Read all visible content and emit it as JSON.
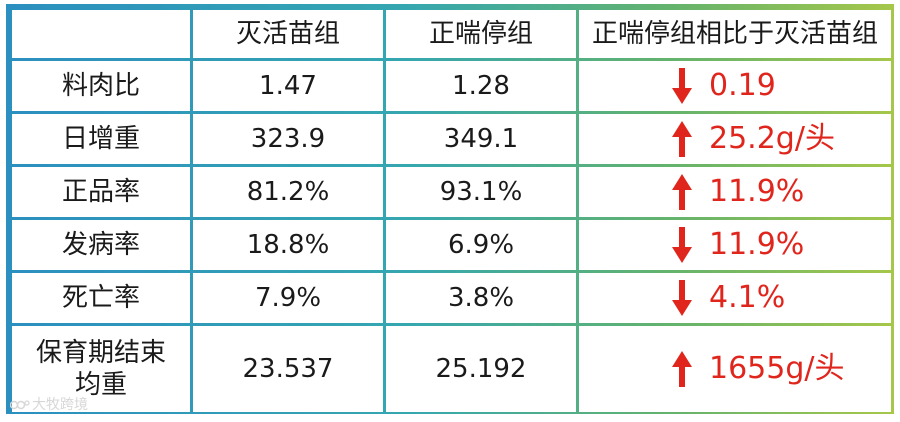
{
  "table": {
    "headers": [
      "",
      "灭活苗组",
      "正喘停组",
      "正喘停组相比于灭活苗组"
    ],
    "rows": [
      {
        "label": "料肉比",
        "inactivated": "1.47",
        "zhengchuanting": "1.28",
        "direction": "down",
        "change": "0.19"
      },
      {
        "label": "日增重",
        "inactivated": "323.9",
        "zhengchuanting": "349.1",
        "direction": "up",
        "change": "25.2g/头"
      },
      {
        "label": "正品率",
        "inactivated": "81.2%",
        "zhengchuanting": "93.1%",
        "direction": "up",
        "change": "11.9%"
      },
      {
        "label": "发病率",
        "inactivated": "18.8%",
        "zhengchuanting": "6.9%",
        "direction": "down",
        "change": "11.9%"
      },
      {
        "label": "死亡率",
        "inactivated": "7.9%",
        "zhengchuanting": "3.8%",
        "direction": "down",
        "change": "4.1%"
      },
      {
        "label_line1": "保育期结束",
        "label_line2": "均重",
        "inactivated": "23.537",
        "zhengchuanting": "25.192",
        "direction": "up",
        "change": "1655g/头"
      }
    ]
  },
  "watermark": "大牧跨境",
  "colors": {
    "accent_red": "#e0261c",
    "border_start": "#2b8fc0",
    "border_end": "#a6c74a"
  },
  "icons": {
    "up": "arrow-up-icon",
    "down": "arrow-down-icon"
  }
}
